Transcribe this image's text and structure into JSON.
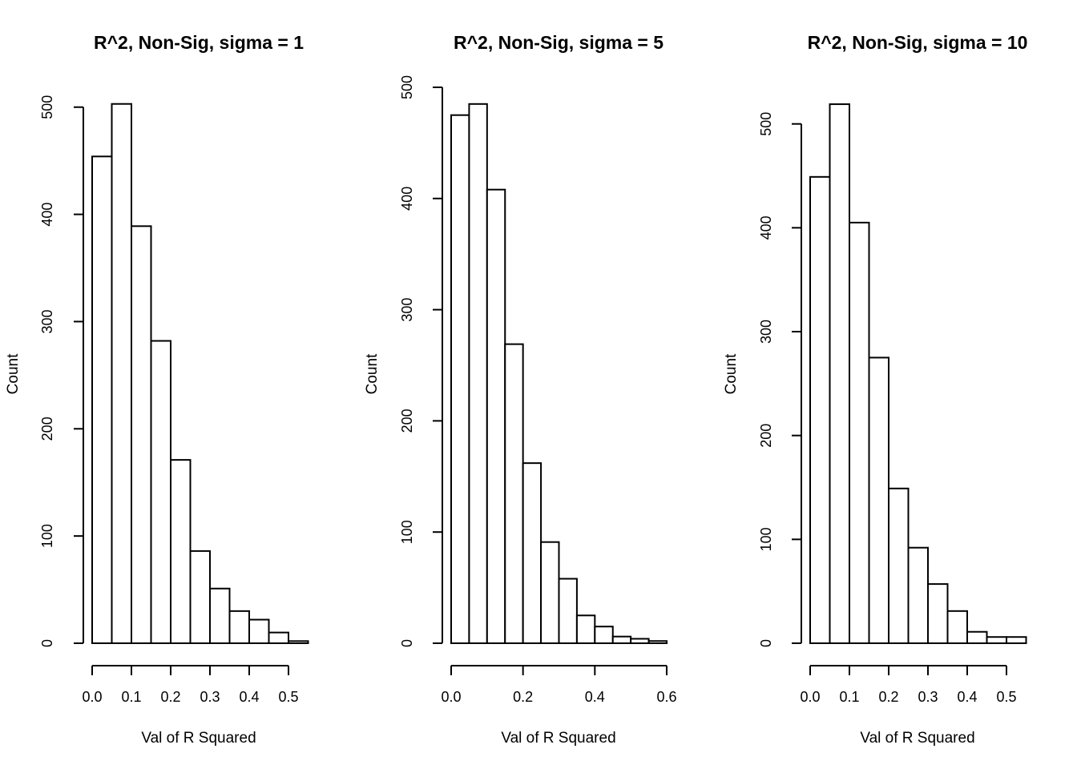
{
  "chart_data": [
    {
      "type": "bar",
      "title": "R^2, Non-Sig, sigma = 1",
      "xlabel": "Val of R Squared",
      "ylabel": "Count",
      "bin_width": 0.05,
      "x_start": 0.0,
      "values": [
        454,
        503,
        389,
        282,
        171,
        86,
        51,
        30,
        22,
        10,
        2
      ],
      "xticks": [
        "0.0",
        "0.1",
        "0.2",
        "0.3",
        "0.4",
        "0.5"
      ],
      "yticks": [
        "0",
        "100",
        "200",
        "300",
        "400",
        "500"
      ],
      "xlim": [
        0,
        0.5
      ],
      "ylim": [
        0,
        500
      ],
      "grid": false
    },
    {
      "type": "bar",
      "title": "R^2, Non-Sig, sigma = 5",
      "xlabel": "Val of R Squared",
      "ylabel": "Count",
      "bin_width": 0.05,
      "x_start": 0.0,
      "values": [
        475,
        485,
        408,
        269,
        162,
        91,
        58,
        25,
        15,
        6,
        4,
        2
      ],
      "xticks": [
        "0.0",
        "0.2",
        "0.4",
        "0.6"
      ],
      "yticks": [
        "0",
        "100",
        "200",
        "300",
        "400",
        "500"
      ],
      "xlim": [
        0,
        0.6
      ],
      "ylim": [
        0,
        500
      ],
      "grid": false
    },
    {
      "type": "bar",
      "title": "R^2, Non-Sig, sigma = 10",
      "xlabel": "Val of R Squared",
      "ylabel": "Count",
      "bin_width": 0.05,
      "x_start": 0.0,
      "values": [
        449,
        519,
        405,
        275,
        149,
        92,
        57,
        31,
        11,
        6,
        6
      ],
      "xticks": [
        "0.0",
        "0.1",
        "0.2",
        "0.3",
        "0.4",
        "0.5"
      ],
      "yticks": [
        "0",
        "100",
        "200",
        "300",
        "400",
        "500"
      ],
      "xlim": [
        0,
        0.5
      ],
      "ylim": [
        0,
        500
      ],
      "grid": false
    }
  ]
}
